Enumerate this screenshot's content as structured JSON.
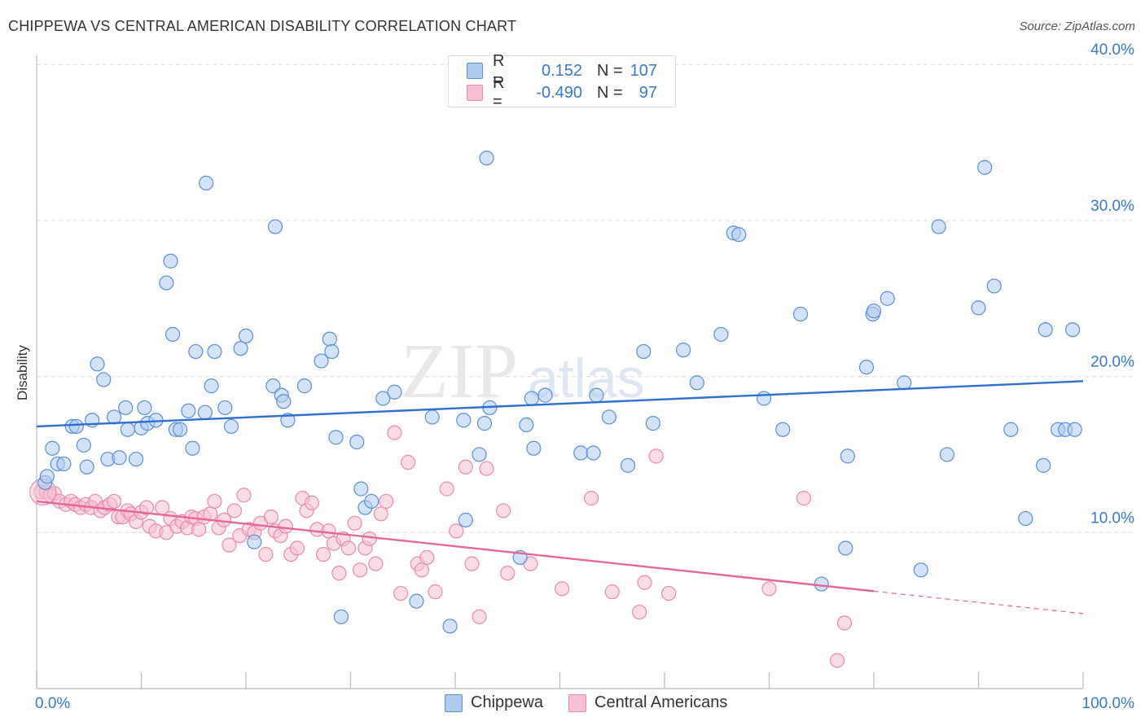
{
  "title": "CHIPPEWA VS CENTRAL AMERICAN DISABILITY CORRELATION CHART",
  "source": "Source: ZipAtlas.com",
  "legend": {
    "r_label": "R =",
    "n_label": "N =",
    "rows": [
      {
        "r": "0.152",
        "n": "107"
      },
      {
        "r": "-0.490",
        "n": "97"
      }
    ]
  },
  "colors": {
    "blue_fill": "#aecbee",
    "blue_stroke": "#5b8fd6",
    "blue_line": "#2f6fd0",
    "pink_fill": "#f6bfd3",
    "pink_stroke": "#e98aae",
    "pink_line": "#e5679a",
    "tick_label": "#3a78c8"
  },
  "chart_data": {
    "type": "scatter",
    "title": "CHIPPEWA VS CENTRAL AMERICAN DISABILITY CORRELATION CHART",
    "xlabel": "",
    "ylabel": "Disability",
    "xlim": [
      0,
      100
    ],
    "ylim": [
      0,
      40
    ],
    "x_tick_labels": [
      "0.0%",
      "100.0%"
    ],
    "y_ticks": [
      10,
      20,
      30,
      40
    ],
    "y_tick_labels": [
      "10.0%",
      "20.0%",
      "30.0%",
      "40.0%"
    ],
    "grid": true,
    "legend_position": "top-center",
    "series": [
      {
        "name": "Chippewa",
        "color": "#5b8fd6",
        "trend": {
          "x": [
            0,
            100
          ],
          "y": [
            16.8,
            19.7
          ],
          "dashed_from": null
        },
        "points": [
          [
            0.8,
            13.2
          ],
          [
            1.0,
            13.6
          ],
          [
            1.5,
            15.4
          ],
          [
            2.0,
            14.4
          ],
          [
            2.6,
            14.4
          ],
          [
            3.4,
            16.8
          ],
          [
            3.8,
            16.8
          ],
          [
            4.5,
            15.6
          ],
          [
            4.8,
            14.2
          ],
          [
            5.3,
            17.2
          ],
          [
            5.8,
            20.8
          ],
          [
            6.4,
            19.8
          ],
          [
            6.8,
            14.7
          ],
          [
            7.4,
            17.4
          ],
          [
            7.9,
            14.8
          ],
          [
            8.5,
            18.0
          ],
          [
            8.7,
            16.6
          ],
          [
            9.5,
            14.7
          ],
          [
            10.0,
            16.7
          ],
          [
            10.3,
            18.0
          ],
          [
            10.6,
            17.0
          ],
          [
            11.4,
            17.2
          ],
          [
            12.4,
            26.0
          ],
          [
            12.8,
            27.4
          ],
          [
            13.0,
            22.7
          ],
          [
            13.3,
            16.6
          ],
          [
            13.7,
            16.6
          ],
          [
            14.5,
            17.8
          ],
          [
            14.9,
            15.4
          ],
          [
            15.2,
            21.6
          ],
          [
            16.1,
            17.7
          ],
          [
            16.2,
            32.4
          ],
          [
            16.7,
            19.4
          ],
          [
            17.0,
            21.6
          ],
          [
            18.0,
            18.0
          ],
          [
            18.6,
            16.8
          ],
          [
            19.5,
            21.8
          ],
          [
            20.0,
            22.6
          ],
          [
            20.8,
            9.4
          ],
          [
            22.6,
            19.4
          ],
          [
            22.8,
            29.6
          ],
          [
            23.4,
            18.8
          ],
          [
            23.6,
            18.4
          ],
          [
            24.0,
            17.2
          ],
          [
            25.6,
            19.4
          ],
          [
            27.2,
            21.0
          ],
          [
            28.0,
            22.4
          ],
          [
            28.2,
            21.6
          ],
          [
            28.6,
            16.1
          ],
          [
            29.1,
            4.6
          ],
          [
            30.6,
            15.8
          ],
          [
            31.0,
            12.8
          ],
          [
            31.4,
            11.6
          ],
          [
            32.0,
            12.0
          ],
          [
            33.1,
            18.6
          ],
          [
            34.2,
            19.0
          ],
          [
            36.3,
            5.6
          ],
          [
            37.8,
            17.4
          ],
          [
            39.5,
            4.0
          ],
          [
            40.8,
            17.2
          ],
          [
            41.0,
            10.8
          ],
          [
            42.3,
            15.0
          ],
          [
            42.8,
            17.0
          ],
          [
            43.0,
            34.0
          ],
          [
            43.3,
            18.0
          ],
          [
            46.2,
            8.4
          ],
          [
            46.8,
            16.9
          ],
          [
            47.3,
            18.6
          ],
          [
            47.5,
            15.4
          ],
          [
            48.6,
            18.8
          ],
          [
            52.0,
            15.1
          ],
          [
            53.2,
            15.1
          ],
          [
            53.5,
            18.8
          ],
          [
            54.7,
            17.4
          ],
          [
            56.5,
            14.3
          ],
          [
            58.0,
            21.6
          ],
          [
            58.9,
            17.0
          ],
          [
            61.8,
            21.7
          ],
          [
            63.1,
            19.6
          ],
          [
            65.4,
            22.7
          ],
          [
            66.6,
            29.2
          ],
          [
            67.1,
            29.1
          ],
          [
            69.5,
            18.6
          ],
          [
            71.3,
            16.6
          ],
          [
            73.0,
            24.0
          ],
          [
            77.3,
            9.0
          ],
          [
            77.5,
            14.9
          ],
          [
            79.3,
            20.6
          ],
          [
            79.9,
            24.0
          ],
          [
            80.0,
            24.2
          ],
          [
            81.3,
            25.0
          ],
          [
            82.9,
            19.6
          ],
          [
            84.5,
            7.6
          ],
          [
            86.2,
            29.6
          ],
          [
            87.0,
            15.0
          ],
          [
            90.0,
            24.4
          ],
          [
            90.6,
            33.4
          ],
          [
            91.5,
            25.8
          ],
          [
            93.1,
            16.6
          ],
          [
            94.5,
            10.9
          ],
          [
            96.2,
            14.3
          ],
          [
            96.4,
            23.0
          ],
          [
            97.6,
            16.6
          ],
          [
            98.3,
            16.6
          ],
          [
            99.0,
            23.0
          ],
          [
            99.2,
            16.6
          ],
          [
            75.0,
            6.7
          ]
        ]
      },
      {
        "name": "Central Americans",
        "color": "#e98aae",
        "trend": {
          "x": [
            0,
            100
          ],
          "y": [
            12.0,
            4.8
          ],
          "dashed_from": 80
        },
        "points": [
          [
            0.4,
            12.6
          ],
          [
            0.9,
            12.6
          ],
          [
            1.3,
            12.4
          ],
          [
            1.7,
            12.5
          ],
          [
            2.2,
            12.0
          ],
          [
            2.8,
            11.8
          ],
          [
            3.3,
            12.0
          ],
          [
            3.7,
            11.8
          ],
          [
            4.2,
            11.6
          ],
          [
            4.7,
            11.8
          ],
          [
            5.2,
            11.6
          ],
          [
            5.6,
            12.0
          ],
          [
            6.1,
            11.4
          ],
          [
            6.5,
            11.6
          ],
          [
            7.0,
            11.8
          ],
          [
            7.4,
            12.0
          ],
          [
            7.8,
            11.0
          ],
          [
            8.2,
            11.0
          ],
          [
            8.7,
            11.4
          ],
          [
            9.0,
            11.2
          ],
          [
            9.5,
            10.7
          ],
          [
            10.0,
            11.3
          ],
          [
            10.5,
            11.6
          ],
          [
            10.8,
            10.4
          ],
          [
            11.4,
            10.1
          ],
          [
            12.0,
            11.6
          ],
          [
            12.4,
            10.0
          ],
          [
            12.8,
            10.9
          ],
          [
            13.4,
            10.4
          ],
          [
            13.9,
            10.7
          ],
          [
            14.4,
            10.3
          ],
          [
            14.8,
            11.0
          ],
          [
            15.2,
            10.9
          ],
          [
            15.5,
            10.2
          ],
          [
            16.0,
            11.0
          ],
          [
            16.6,
            11.2
          ],
          [
            17.0,
            12.0
          ],
          [
            17.4,
            10.3
          ],
          [
            17.9,
            10.8
          ],
          [
            18.4,
            9.2
          ],
          [
            18.9,
            11.4
          ],
          [
            19.4,
            9.8
          ],
          [
            19.8,
            12.4
          ],
          [
            20.3,
            10.2
          ],
          [
            20.8,
            10.0
          ],
          [
            21.4,
            10.6
          ],
          [
            21.9,
            8.6
          ],
          [
            22.4,
            11.0
          ],
          [
            22.8,
            10.1
          ],
          [
            23.3,
            9.8
          ],
          [
            23.8,
            10.4
          ],
          [
            24.3,
            8.6
          ],
          [
            24.9,
            9.0
          ],
          [
            25.4,
            12.2
          ],
          [
            25.8,
            11.4
          ],
          [
            26.3,
            11.9
          ],
          [
            26.8,
            10.2
          ],
          [
            27.4,
            8.6
          ],
          [
            27.9,
            10.1
          ],
          [
            28.4,
            9.3
          ],
          [
            28.9,
            7.4
          ],
          [
            29.3,
            9.6
          ],
          [
            29.8,
            9.0
          ],
          [
            30.4,
            10.6
          ],
          [
            30.9,
            7.6
          ],
          [
            31.4,
            9.0
          ],
          [
            31.8,
            9.6
          ],
          [
            32.4,
            8.0
          ],
          [
            32.9,
            11.2
          ],
          [
            33.4,
            12.0
          ],
          [
            34.2,
            16.4
          ],
          [
            34.8,
            6.1
          ],
          [
            35.5,
            14.5
          ],
          [
            36.4,
            8.0
          ],
          [
            36.8,
            7.6
          ],
          [
            37.3,
            8.4
          ],
          [
            38.1,
            6.2
          ],
          [
            39.2,
            12.8
          ],
          [
            40.1,
            10.1
          ],
          [
            41.0,
            14.2
          ],
          [
            41.6,
            8.0
          ],
          [
            42.3,
            4.6
          ],
          [
            43.0,
            14.1
          ],
          [
            44.6,
            11.4
          ],
          [
            45.0,
            7.4
          ],
          [
            47.2,
            8.0
          ],
          [
            50.2,
            6.4
          ],
          [
            53.0,
            12.2
          ],
          [
            55.0,
            6.2
          ],
          [
            57.6,
            4.9
          ],
          [
            58.1,
            6.8
          ],
          [
            59.2,
            14.9
          ],
          [
            60.4,
            6.1
          ],
          [
            73.3,
            12.2
          ],
          [
            76.5,
            1.8
          ],
          [
            77.2,
            4.2
          ],
          [
            70.0,
            6.4
          ]
        ]
      }
    ]
  }
}
